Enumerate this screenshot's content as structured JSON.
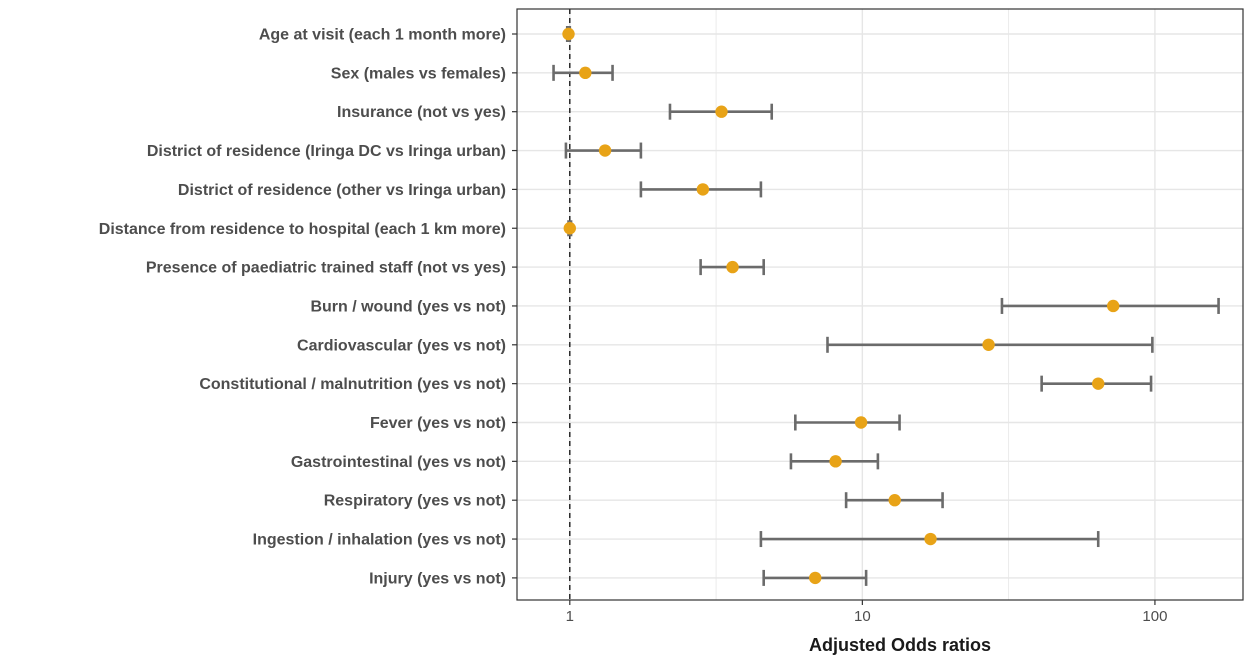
{
  "chart_data": {
    "type": "forest",
    "xlabel": "Adjusted Odds ratios",
    "xscale": "log",
    "xlim": [
      0.66,
      200
    ],
    "x_ticks": [
      1,
      10,
      100
    ],
    "x_tick_labels": [
      "1",
      "10",
      "100"
    ],
    "reference_line": 1,
    "grid": true,
    "colors": {
      "point": "#E8A317",
      "whisker": "#6b6b6b",
      "grid": "#e6e6e6",
      "axis": "#333333",
      "reference": "#1a1a1a"
    },
    "rows": [
      {
        "label": "Age at visit (each 1 month more)",
        "or": 0.99,
        "lo": 0.98,
        "hi": 1.0
      },
      {
        "label": "Sex (males vs females)",
        "or": 1.13,
        "lo": 0.88,
        "hi": 1.4
      },
      {
        "label": "Insurance (not vs yes)",
        "or": 3.3,
        "lo": 2.2,
        "hi": 4.9
      },
      {
        "label": "District of residence (Iringa DC vs Iringa urban)",
        "or": 1.32,
        "lo": 0.97,
        "hi": 1.75
      },
      {
        "label": "District of residence (other vs Iringa urban)",
        "or": 2.85,
        "lo": 1.75,
        "hi": 4.5
      },
      {
        "label": "Distance from residence to hospital (each 1 km more)",
        "or": 1.0,
        "lo": 0.99,
        "hi": 1.01
      },
      {
        "label": "Presence of paediatric trained staff (not vs yes)",
        "or": 3.6,
        "lo": 2.8,
        "hi": 4.6
      },
      {
        "label": "Burn / wound (yes vs not)",
        "or": 72,
        "lo": 30,
        "hi": 165
      },
      {
        "label": "Cardiovascular (yes vs not)",
        "or": 27,
        "lo": 7.6,
        "hi": 98
      },
      {
        "label": "Constitutional / malnutrition (yes vs not)",
        "or": 64,
        "lo": 41,
        "hi": 97
      },
      {
        "label": "Fever (yes vs not)",
        "or": 9.9,
        "lo": 5.9,
        "hi": 13.4
      },
      {
        "label": "Gastrointestinal (yes vs not)",
        "or": 8.1,
        "lo": 5.7,
        "hi": 11.3
      },
      {
        "label": "Respiratory (yes vs not)",
        "or": 12.9,
        "lo": 8.8,
        "hi": 18.8
      },
      {
        "label": "Ingestion / inhalation (yes vs not)",
        "or": 17.1,
        "lo": 4.5,
        "hi": 64
      },
      {
        "label": "Injury (yes vs not)",
        "or": 6.9,
        "lo": 4.6,
        "hi": 10.3
      }
    ]
  }
}
